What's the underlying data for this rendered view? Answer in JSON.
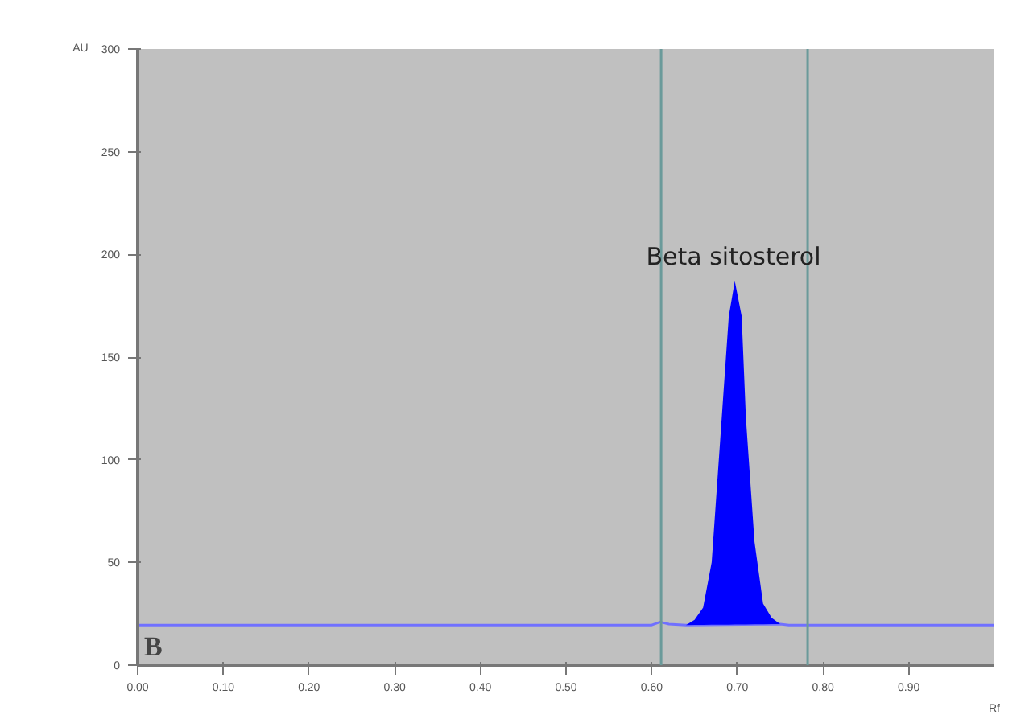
{
  "chart_data": {
    "type": "line",
    "xlabel": "Rf",
    "ylabel": "AU",
    "x": [
      0,
      0.6,
      0.61,
      0.62,
      0.64,
      0.75,
      0.76,
      0.78,
      1.0
    ],
    "series": [
      {
        "color": "#7070ff",
        "values": [
          19.5,
          19.5,
          21,
          20,
          19.5,
          20,
          19.5,
          19.5,
          19.5
        ]
      },
      {
        "type": "area",
        "color": "#0000ff",
        "x": [
          0.64,
          0.65,
          0.66,
          0.67,
          0.68,
          0.69,
          0.697,
          0.705,
          0.71,
          0.72,
          0.73,
          0.74,
          0.75
        ],
        "values": [
          19.5,
          22,
          28,
          50,
          110,
          170,
          187,
          170,
          120,
          60,
          30,
          23,
          20
        ]
      }
    ],
    "xlim": [
      0,
      1.0
    ],
    "ylim": [
      0,
      300
    ],
    "xticks": [
      {
        "value": 0,
        "label": "0.00"
      },
      {
        "value": 0.1,
        "label": "0.10"
      },
      {
        "value": 0.2,
        "label": "0.20"
      },
      {
        "value": 0.3,
        "label": "0.30"
      },
      {
        "value": 0.4,
        "label": "0.40"
      },
      {
        "value": 0.5,
        "label": "0.50"
      },
      {
        "value": 0.6,
        "label": "0.60"
      },
      {
        "value": 0.7,
        "label": "0.70"
      },
      {
        "value": 0.8,
        "label": "0.80"
      },
      {
        "value": 0.9,
        "label": "0.90"
      }
    ],
    "yticks": [
      0,
      50,
      100,
      150,
      200,
      250,
      300
    ],
    "grid": false,
    "ref_lines": [
      {
        "axis": "x",
        "value": 0.611,
        "color": "#6a9a9a"
      },
      {
        "axis": "x",
        "value": 0.782,
        "color": "#6a9a9a"
      }
    ],
    "annotations": [
      "Beta sitosterol",
      "B"
    ]
  }
}
